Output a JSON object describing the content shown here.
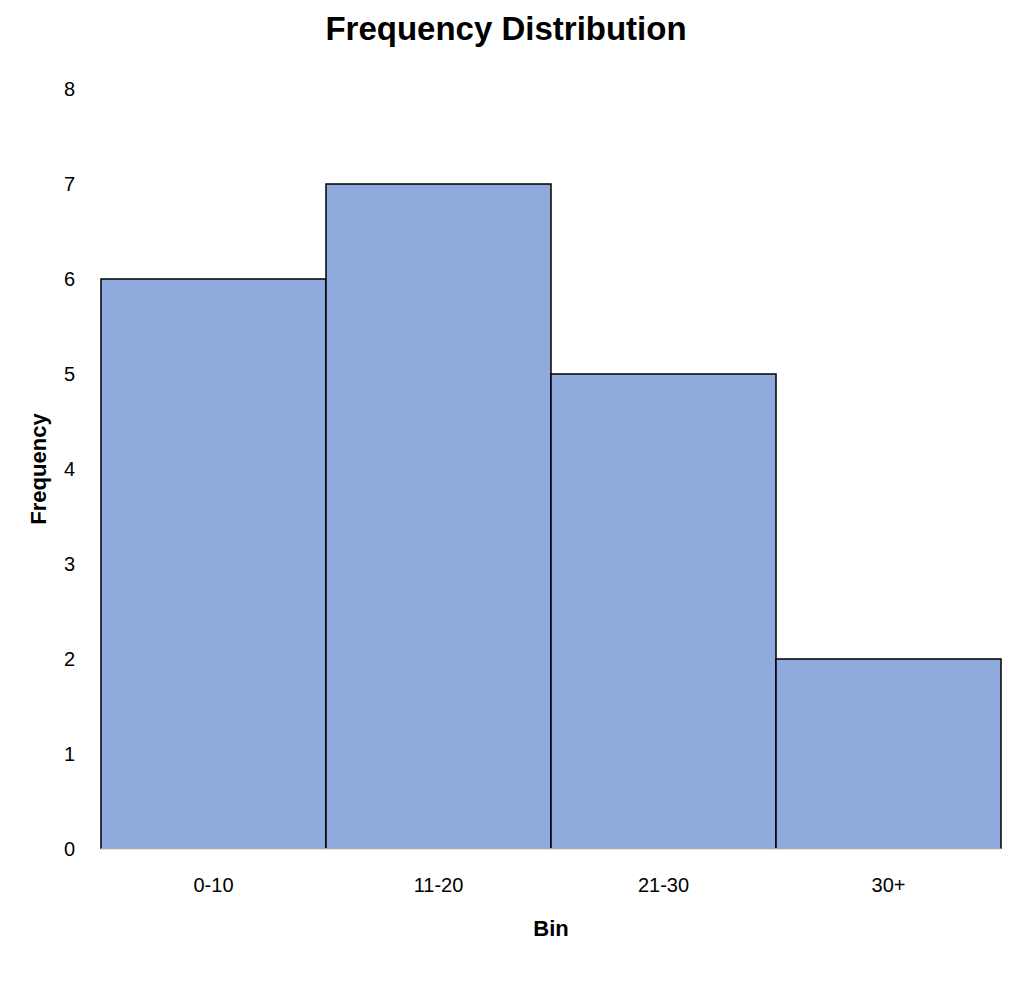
{
  "chart_data": {
    "type": "bar",
    "title": "Frequency Distribution",
    "x_label": "Bin",
    "y_label": "Frequency",
    "categories": [
      "0-10",
      "11-20",
      "21-30",
      "30+"
    ],
    "values": [
      6,
      7,
      5,
      2
    ],
    "color": "#8faadc",
    "ylim": [
      0,
      8
    ],
    "yticks": [
      0,
      1,
      2,
      3,
      4,
      5,
      6,
      7,
      8
    ],
    "grid": false
  }
}
